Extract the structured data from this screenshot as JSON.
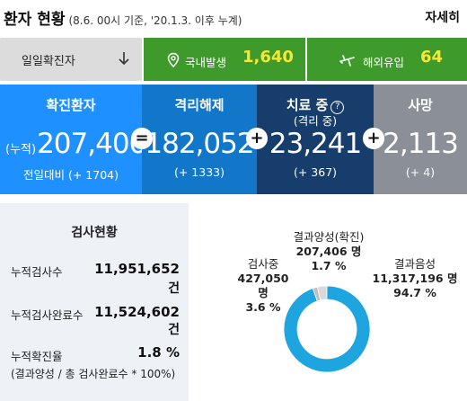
{
  "header": {
    "title": "환자 현황",
    "subtitle": "(8.6. 00시 기준, '20.1.3. 이후 누계)",
    "more_label": "자세히"
  },
  "daily": {
    "label": "일일확진자",
    "domestic_label": "국내발생",
    "domestic_value": "1,640",
    "overseas_label": "해외유입",
    "overseas_value": "64"
  },
  "stats": {
    "confirmed": {
      "title": "확진환자",
      "prefix": "(누적)",
      "value": "207,406",
      "delta": "전일대비 (+ 1704)"
    },
    "released": {
      "title": "격리해제",
      "value": "182,052",
      "delta": "(+ 1333)"
    },
    "treatment": {
      "title": "치료 중",
      "sub": "(격리 중)",
      "value": "23,241",
      "delta": "(+ 367)"
    },
    "deaths": {
      "title": "사망",
      "value": "2,113",
      "delta": "(+ 4)"
    },
    "op_equals": "=",
    "op_plus_1": "+",
    "op_plus_2": "+",
    "op_plus_3": "+"
  },
  "tests": {
    "title": "검사현황",
    "rows": [
      {
        "label": "누적검사수",
        "value": "11,951,652",
        "unit": "건"
      },
      {
        "label": "누적검사완료수",
        "value": "11,524,602",
        "unit": "건"
      },
      {
        "label": "누적확진율",
        "value": "1.8 %"
      }
    ],
    "note": "(결과양성 / 총 검사완료수 * 100%)"
  },
  "chart_data": {
    "type": "pie",
    "categories": [
      "검사중",
      "결과양성(확진)",
      "결과음성"
    ],
    "values": [
      427050,
      207406,
      11317196
    ],
    "percents": [
      3.6,
      1.7,
      94.7
    ],
    "labels": [
      {
        "name": "검사중",
        "count": "427,050 명",
        "percent": "3.6 %"
      },
      {
        "name": "결과양성(확진)",
        "count": "207,406 명",
        "percent": "1.7 %"
      },
      {
        "name": "결과음성",
        "count": "11,317,196 명",
        "percent": "94.7 %"
      }
    ],
    "colors": [
      "#d9d9d9",
      "#bfbfbf",
      "#1ea5e0"
    ]
  }
}
